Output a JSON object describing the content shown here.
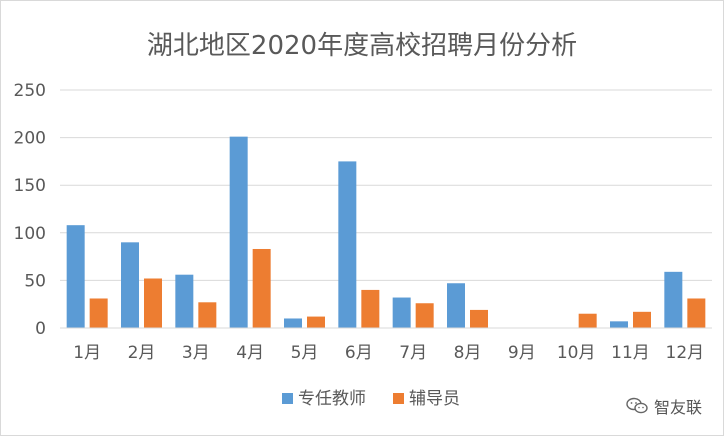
{
  "chart_data": {
    "type": "bar",
    "title": "湖北地区2020年度高校招聘月份分析",
    "categories": [
      "1月",
      "2月",
      "3月",
      "4月",
      "5月",
      "6月",
      "7月",
      "8月",
      "9月",
      "10月",
      "11月",
      "12月"
    ],
    "series": [
      {
        "name": "专任教师",
        "color": "#5b9bd5",
        "values": [
          108,
          90,
          56,
          201,
          10,
          175,
          32,
          47,
          0,
          0,
          7,
          59
        ]
      },
      {
        "name": "辅导员",
        "color": "#ed7d31",
        "values": [
          31,
          52,
          27,
          83,
          12,
          40,
          26,
          19,
          0,
          15,
          17,
          31
        ]
      }
    ],
    "ylim": [
      0,
      250
    ],
    "yticks": [
      0,
      50,
      100,
      150,
      200,
      250
    ],
    "grid": true,
    "legend_position": "bottom"
  },
  "watermark": {
    "text": "智友联",
    "icon": "wechat-icon"
  }
}
